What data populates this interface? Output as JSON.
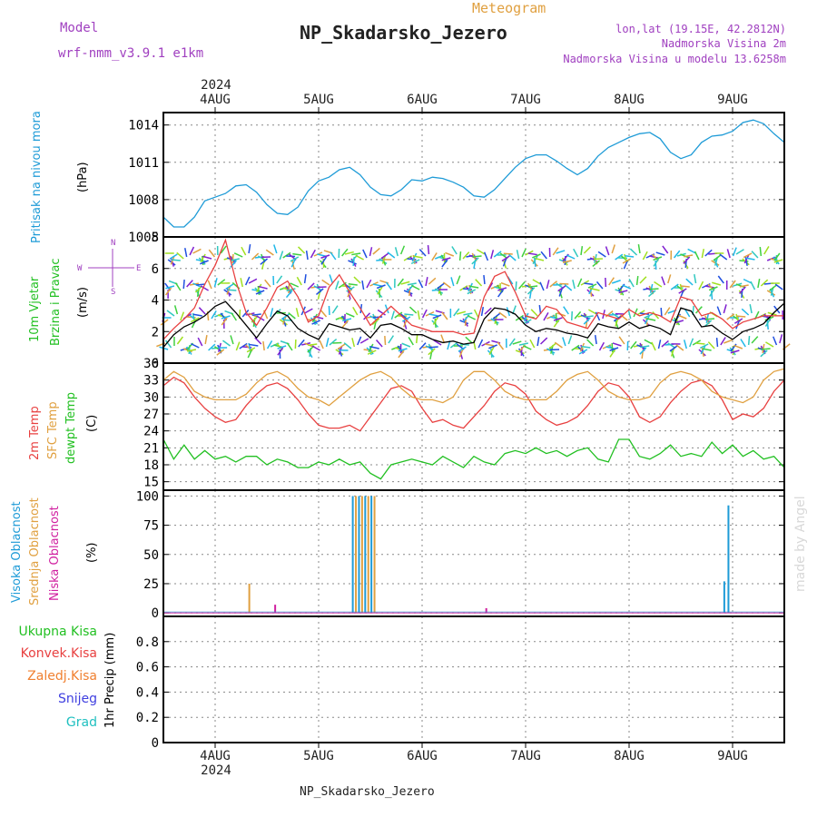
{
  "header": {
    "model_label": "Model",
    "model_name": "wrf-nmm_v3.9.1 e1km",
    "title": "Meteogram",
    "station": "NP_Skadarsko_Jezero",
    "coords": "lon,lat (19.15E, 42.2812N)",
    "elevation": "Nadmorska Visina 2m",
    "model_elevation": "Nadmorska Visina u modelu 13.6258m",
    "footer_station": "NP_Skadarsko_Jezero",
    "watermark": "made by Angel"
  },
  "colors": {
    "pressure": "#1e9bd7",
    "wind_speed": "#000000",
    "wind_gust": "#e84040",
    "t2m": "#e84040",
    "tsfc": "#e0a040",
    "dewpt": "#22c022",
    "cloud_high": "#1e9bd7",
    "cloud_mid": "#e0a040",
    "cloud_low": "#d020a0",
    "purple_text": "#a040c0",
    "title_text": "#e0a040",
    "precip_total": "#22c022",
    "precip_conv": "#e84040",
    "precip_frozen": "#f08030",
    "precip_snow": "#4040e0",
    "precip_hail": "#20c0c0"
  },
  "chart_data": {
    "type": "line",
    "x_axis": {
      "year": "2024",
      "ticks": [
        "4AUG",
        "5AUG",
        "6AUG",
        "7AUG",
        "8AUG",
        "9AUG"
      ],
      "range_days": [
        3.5,
        9.5
      ]
    },
    "panels": [
      {
        "id": "pressure",
        "labels": [
          "Pritisak na nivou mora"
        ],
        "unit": "(hPa)",
        "ylim": [
          1005,
          1015
        ],
        "yticks": [
          1005,
          1008,
          1011,
          1014
        ],
        "series": [
          {
            "x": [
              3.5,
              3.6,
              3.7,
              3.8,
              3.9,
              4.0,
              4.1,
              4.2,
              4.3,
              4.4,
              4.5,
              4.6,
              4.7,
              4.8,
              4.9,
              5.0,
              5.1,
              5.2,
              5.3,
              5.4,
              5.5,
              5.6,
              5.7,
              5.8,
              5.9,
              6.0,
              6.1,
              6.2,
              6.3,
              6.4,
              6.5,
              6.6,
              6.7,
              6.8,
              6.9,
              7.0,
              7.1,
              7.2,
              7.3,
              7.4,
              7.5,
              7.6,
              7.7,
              7.8,
              7.9,
              8.0,
              8.1,
              8.2,
              8.3,
              8.4,
              8.5,
              8.6,
              8.7,
              8.8,
              8.9,
              9.0,
              9.1,
              9.2,
              9.3,
              9.4,
              9.5
            ],
            "values": [
              1006.6,
              1005.8,
              1005.8,
              1006.6,
              1007.9,
              1008.2,
              1008.5,
              1009.1,
              1009.2,
              1008.6,
              1007.6,
              1006.9,
              1006.8,
              1007.4,
              1008.7,
              1009.5,
              1009.8,
              1010.4,
              1010.6,
              1010.0,
              1009.0,
              1008.4,
              1008.3,
              1008.8,
              1009.6,
              1009.5,
              1009.8,
              1009.7,
              1009.4,
              1009.0,
              1008.3,
              1008.2,
              1008.8,
              1009.7,
              1010.6,
              1011.3,
              1011.6,
              1011.6,
              1011.1,
              1010.5,
              1010.0,
              1010.5,
              1011.5,
              1012.2,
              1012.6,
              1013.0,
              1013.3,
              1013.4,
              1012.9,
              1011.8,
              1011.3,
              1011.6,
              1012.6,
              1013.1,
              1013.2,
              1013.5,
              1014.2,
              1014.4,
              1014.1,
              1013.3,
              1012.6
            ]
          }
        ]
      },
      {
        "id": "wind",
        "labels": [
          "10m Vjetar",
          "Brzina i Pravac"
        ],
        "unit": "(m/s)",
        "ylim": [
          0,
          8
        ],
        "yticks": [
          0,
          2,
          4,
          6,
          8
        ],
        "compass": [
          "N",
          "W",
          "E",
          "S"
        ],
        "series": [
          {
            "name": "speed",
            "x": [
              3.5,
              3.6,
              3.7,
              3.8,
              3.9,
              4.0,
              4.1,
              4.2,
              4.3,
              4.4,
              4.5,
              4.6,
              4.7,
              4.8,
              4.9,
              5.0,
              5.1,
              5.2,
              5.3,
              5.4,
              5.5,
              5.6,
              5.7,
              5.8,
              5.9,
              6.0,
              6.1,
              6.2,
              6.3,
              6.4,
              6.5,
              6.6,
              6.7,
              6.8,
              6.9,
              7.0,
              7.1,
              7.2,
              7.3,
              7.4,
              7.5,
              7.6,
              7.7,
              7.8,
              7.9,
              8.0,
              8.1,
              8.2,
              8.3,
              8.4,
              8.5,
              8.6,
              8.7,
              8.8,
              8.9,
              9.0,
              9.1,
              9.2,
              9.3,
              9.4,
              9.5
            ],
            "values": [
              1.0,
              1.8,
              2.3,
              2.6,
              3.0,
              3.6,
              3.9,
              3.2,
              2.4,
              1.6,
              2.5,
              3.3,
              3.0,
              2.2,
              1.8,
              1.5,
              2.5,
              2.3,
              2.1,
              2.2,
              1.6,
              2.4,
              2.5,
              2.2,
              1.8,
              1.8,
              1.5,
              1.3,
              1.4,
              1.2,
              1.3,
              2.8,
              3.5,
              3.4,
              3.1,
              2.4,
              2.0,
              2.2,
              2.1,
              1.9,
              1.8,
              1.6,
              2.5,
              2.3,
              2.2,
              2.6,
              2.2,
              2.4,
              2.2,
              1.8,
              3.5,
              3.3,
              2.3,
              2.4,
              1.9,
              1.5,
              2.0,
              2.2,
              2.5,
              3.2,
              3.8
            ]
          },
          {
            "name": "gust",
            "x": [
              3.5,
              3.6,
              3.7,
              3.8,
              3.9,
              4.0,
              4.1,
              4.2,
              4.3,
              4.4,
              4.5,
              4.6,
              4.7,
              4.8,
              4.9,
              5.0,
              5.1,
              5.2,
              5.3,
              5.4,
              5.5,
              5.6,
              5.7,
              5.8,
              5.9,
              6.0,
              6.1,
              6.2,
              6.3,
              6.4,
              6.5,
              6.6,
              6.7,
              6.8,
              6.9,
              7.0,
              7.1,
              7.2,
              7.3,
              7.4,
              7.5,
              7.6,
              7.7,
              7.8,
              7.9,
              8.0,
              8.1,
              8.2,
              8.3,
              8.4,
              8.5,
              8.6,
              8.7,
              8.8,
              8.9,
              9.0,
              9.1,
              9.2,
              9.3,
              9.4,
              9.5
            ],
            "values": [
              1.5,
              2.2,
              2.8,
              3.5,
              5.0,
              6.2,
              7.8,
              5.2,
              3.2,
              2.4,
              3.5,
              4.8,
              5.2,
              4.2,
              2.6,
              3.0,
              4.8,
              5.6,
              4.5,
              3.5,
              2.4,
              3.0,
              3.6,
              3.0,
              2.4,
              2.2,
              2.0,
              2.0,
              2.0,
              1.8,
              1.9,
              4.2,
              5.5,
              5.8,
              4.5,
              3.0,
              2.8,
              3.6,
              3.4,
              2.6,
              2.4,
              2.2,
              3.2,
              3.0,
              2.8,
              3.4,
              3.0,
              3.2,
              3.0,
              2.6,
              4.2,
              4.0,
              3.0,
              3.2,
              2.8,
              2.2,
              2.6,
              2.8,
              3.0,
              3.0,
              3.0
            ]
          }
        ]
      },
      {
        "id": "temp",
        "labels": [
          "2m Temp",
          "SFC Temp",
          "dewpt Temp"
        ],
        "unit": "(C)",
        "ylim": [
          13.5,
          36
        ],
        "yticks": [
          15,
          18,
          21,
          24,
          27,
          30,
          33,
          36
        ],
        "series": [
          {
            "name": "2m Temp",
            "x": [
              3.5,
              3.6,
              3.7,
              3.8,
              3.9,
              4.0,
              4.1,
              4.2,
              4.3,
              4.4,
              4.5,
              4.6,
              4.7,
              4.8,
              4.9,
              5.0,
              5.1,
              5.2,
              5.3,
              5.4,
              5.5,
              5.6,
              5.7,
              5.8,
              5.9,
              6.0,
              6.1,
              6.2,
              6.3,
              6.4,
              6.5,
              6.6,
              6.7,
              6.8,
              6.9,
              7.0,
              7.1,
              7.2,
              7.3,
              7.4,
              7.5,
              7.6,
              7.7,
              7.8,
              7.9,
              8.0,
              8.1,
              8.2,
              8.3,
              8.4,
              8.5,
              8.6,
              8.7,
              8.8,
              8.9,
              9.0,
              9.1,
              9.2,
              9.3,
              9.4,
              9.5
            ],
            "values": [
              32.0,
              33.5,
              32.5,
              30.0,
              28.0,
              26.5,
              25.5,
              26.0,
              28.5,
              30.5,
              32.0,
              32.5,
              31.5,
              29.5,
              27.0,
              25.0,
              24.5,
              24.5,
              25.0,
              24.0,
              26.5,
              29.0,
              31.5,
              32.0,
              31.0,
              28.0,
              25.5,
              26.0,
              25.0,
              24.5,
              26.5,
              28.5,
              31.0,
              32.5,
              32.0,
              30.5,
              27.5,
              26.0,
              25.0,
              25.5,
              26.5,
              28.5,
              31.0,
              32.5,
              32.0,
              30.0,
              26.5,
              25.5,
              26.5,
              29.0,
              31.0,
              32.5,
              33.0,
              32.0,
              29.5,
              26.0,
              27.0,
              26.5,
              28.0,
              31.0,
              33.0
            ]
          },
          {
            "name": "SFC Temp",
            "x": [
              3.5,
              3.6,
              3.7,
              3.8,
              3.9,
              4.0,
              4.1,
              4.2,
              4.3,
              4.4,
              4.5,
              4.6,
              4.7,
              4.8,
              4.9,
              5.0,
              5.1,
              5.2,
              5.3,
              5.4,
              5.5,
              5.6,
              5.7,
              5.8,
              5.9,
              6.0,
              6.1,
              6.2,
              6.3,
              6.4,
              6.5,
              6.6,
              6.7,
              6.8,
              6.9,
              7.0,
              7.1,
              7.2,
              7.3,
              7.4,
              7.5,
              7.6,
              7.7,
              7.8,
              7.9,
              8.0,
              8.1,
              8.2,
              8.3,
              8.4,
              8.5,
              8.6,
              8.7,
              8.8,
              8.9,
              9.0,
              9.1,
              9.2,
              9.3,
              9.4,
              9.5
            ],
            "values": [
              33.0,
              34.5,
              33.5,
              31.0,
              30.0,
              29.5,
              29.5,
              29.5,
              30.5,
              32.5,
              34.0,
              34.5,
              33.5,
              31.5,
              30.0,
              29.5,
              28.5,
              30.0,
              31.5,
              33.0,
              34.0,
              34.5,
              33.5,
              31.5,
              30.0,
              29.5,
              29.5,
              29.0,
              30.0,
              33.0,
              34.5,
              34.5,
              33.0,
              31.0,
              30.0,
              29.5,
              29.5,
              29.5,
              31.0,
              33.0,
              34.0,
              34.5,
              33.0,
              31.0,
              30.0,
              29.5,
              29.5,
              30.0,
              32.5,
              34.0,
              34.5,
              34.0,
              33.0,
              31.0,
              30.0,
              29.5,
              29.0,
              30.0,
              33.0,
              34.5,
              35.0
            ]
          },
          {
            "name": "dewpt Temp",
            "x": [
              3.5,
              3.6,
              3.7,
              3.8,
              3.9,
              4.0,
              4.1,
              4.2,
              4.3,
              4.4,
              4.5,
              4.6,
              4.7,
              4.8,
              4.9,
              5.0,
              5.1,
              5.2,
              5.3,
              5.4,
              5.5,
              5.6,
              5.7,
              5.8,
              5.9,
              6.0,
              6.1,
              6.2,
              6.3,
              6.4,
              6.5,
              6.6,
              6.7,
              6.8,
              6.9,
              7.0,
              7.1,
              7.2,
              7.3,
              7.4,
              7.5,
              7.6,
              7.7,
              7.8,
              7.9,
              8.0,
              8.1,
              8.2,
              8.3,
              8.4,
              8.5,
              8.6,
              8.7,
              8.8,
              8.9,
              9.0,
              9.1,
              9.2,
              9.3,
              9.4,
              9.5
            ],
            "values": [
              22.5,
              19.0,
              21.5,
              19.0,
              20.5,
              19.0,
              19.5,
              18.5,
              19.5,
              19.5,
              18.0,
              19.0,
              18.5,
              17.5,
              17.5,
              18.5,
              18.0,
              19.0,
              18.0,
              18.5,
              16.5,
              15.5,
              18.0,
              18.5,
              19.0,
              18.5,
              18.0,
              19.5,
              18.5,
              17.5,
              19.5,
              18.5,
              18.0,
              20.0,
              20.5,
              20.0,
              21.0,
              20.0,
              20.5,
              19.5,
              20.5,
              21.0,
              19.0,
              18.5,
              22.5,
              22.5,
              19.5,
              19.0,
              20.0,
              21.5,
              19.5,
              20.0,
              19.5,
              22.0,
              20.0,
              21.5,
              19.5,
              20.5,
              19.0,
              19.5,
              17.5
            ]
          }
        ]
      },
      {
        "id": "cloud",
        "labels": [
          "Visoka Oblacnost",
          "Srednja Oblacnost",
          "Niska Oblacnost"
        ],
        "unit": "(%)",
        "ylim": [
          -3,
          105
        ],
        "yticks": [
          0,
          25,
          50,
          75,
          100
        ],
        "bars": [
          {
            "layer": "mid",
            "x": 4.33,
            "value": 25
          },
          {
            "layer": "low",
            "x": 4.58,
            "value": 7
          },
          {
            "layer": "high",
            "x": 5.33,
            "value": 100
          },
          {
            "layer": "mid",
            "x": 5.36,
            "value": 100
          },
          {
            "layer": "high",
            "x": 5.39,
            "value": 100
          },
          {
            "layer": "mid",
            "x": 5.42,
            "value": 100
          },
          {
            "layer": "high",
            "x": 5.45,
            "value": 100
          },
          {
            "layer": "mid",
            "x": 5.48,
            "value": 100
          },
          {
            "layer": "high",
            "x": 5.51,
            "value": 100
          },
          {
            "layer": "mid",
            "x": 5.54,
            "value": 100
          },
          {
            "layer": "low",
            "x": 6.62,
            "value": 4
          },
          {
            "layer": "high",
            "x": 8.92,
            "value": 27
          },
          {
            "layer": "high",
            "x": 8.96,
            "value": 92
          }
        ]
      },
      {
        "id": "precip",
        "labels": [
          "Ukupna Kisa",
          "Konvek.Kisa",
          "Zaledj.Kisa",
          "Snijeg",
          "Grad"
        ],
        "unit": "1hr Precip (mm)",
        "ylim": [
          0,
          1
        ],
        "yticks": [
          0,
          0.2,
          0.4,
          0.6,
          0.8
        ],
        "values": []
      }
    ]
  }
}
